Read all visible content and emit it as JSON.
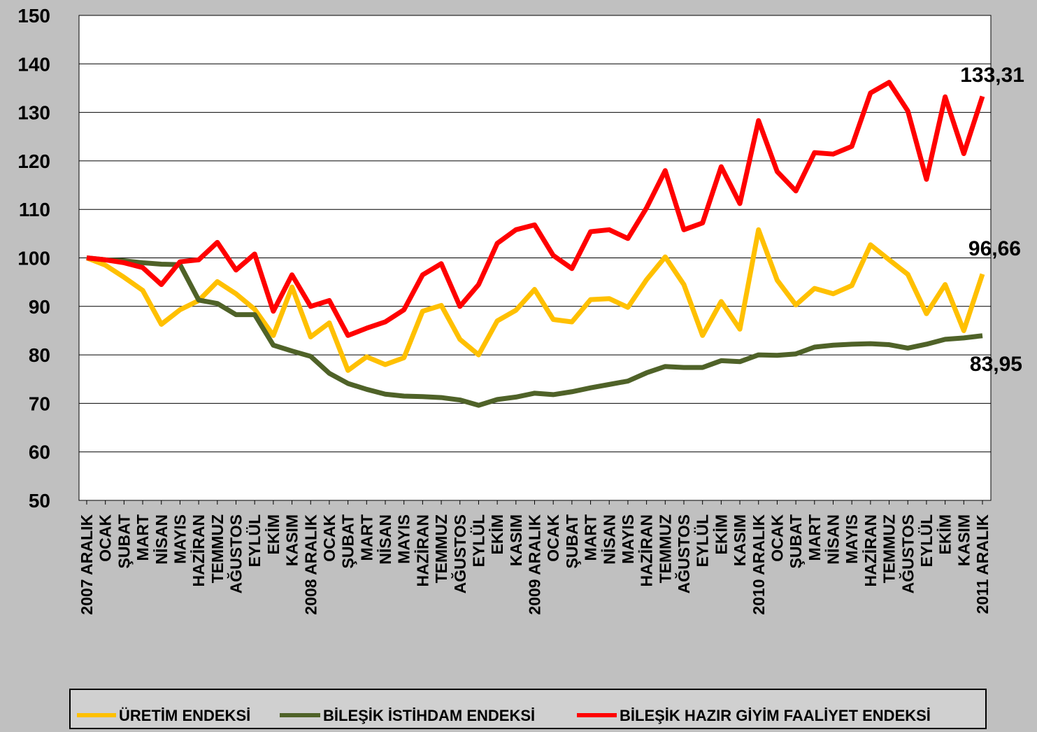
{
  "chart_data": {
    "type": "line",
    "categories": [
      "2007 ARALIK",
      "OCAK",
      "ŞUBAT",
      "MART",
      "NİSAN",
      "MAYIS",
      "HAZİRAN",
      "TEMMUZ",
      "AĞUSTOS",
      "EYLÜL",
      "EKİM",
      "KASIM",
      "2008 ARALIK",
      "OCAK",
      "ŞUBAT",
      "MART",
      "NİSAN",
      "MAYIS",
      "HAZİRAN",
      "TEMMUZ",
      "AĞUSTOS",
      "EYLÜL",
      "EKİM",
      "KASIM",
      "2009 ARALIK",
      "OCAK",
      "ŞUBAT",
      "MART",
      "NİSAN",
      "MAYIS",
      "HAZİRAN",
      "TEMMUZ",
      "AĞUSTOS",
      "EYLÜL",
      "EKİM",
      "KASIM",
      "2010 ARALIK",
      "OCAK",
      "ŞUBAT",
      "MART",
      "NİSAN",
      "MAYIS",
      "HAZİRAN",
      "TEMMUZ",
      "AĞUSTOS",
      "EYLÜL",
      "EKİM",
      "KASIM",
      "2011 ARALIK"
    ],
    "series": [
      {
        "name": "ÜRETİM ENDEKSİ",
        "color": "#ffc000",
        "values": [
          100,
          98.5,
          96,
          93.3,
          86.3,
          89.3,
          91.2,
          95.1,
          92.6,
          89.4,
          84,
          94,
          83.7,
          86.6,
          76.8,
          79.6,
          78,
          79.4,
          89,
          90.2,
          83.2,
          80,
          87,
          89.2,
          93.5,
          87.3,
          86.8,
          91.4,
          91.6,
          89.8,
          95.5,
          100.2,
          94.5,
          84,
          91,
          85.3,
          105.8,
          95.4,
          90.3,
          93.7,
          92.6,
          94.3,
          102.7,
          99.6,
          96.6,
          88.5,
          94.5,
          85,
          96.66
        ],
        "value_labels": [
          null,
          null,
          null,
          null,
          null,
          null,
          null,
          null,
          null,
          null,
          null,
          null,
          null,
          null,
          null,
          null,
          null,
          null,
          null,
          null,
          null,
          null,
          null,
          null,
          null,
          null,
          null,
          null,
          null,
          null,
          null,
          null,
          null,
          null,
          null,
          null,
          null,
          null,
          null,
          null,
          null,
          null,
          null,
          null,
          null,
          null,
          null,
          null,
          "96,66"
        ]
      },
      {
        "name": "BİLEŞİK İSTİHDAM ENDEKSİ",
        "color": "#4f6228",
        "values": [
          100,
          99.6,
          99.4,
          99,
          98.7,
          98.6,
          91.3,
          90.6,
          88.3,
          88.3,
          82,
          80.8,
          79.7,
          76.2,
          74.1,
          72.9,
          71.9,
          71.5,
          71.4,
          71.2,
          70.7,
          69.6,
          70.8,
          71.3,
          72.1,
          71.8,
          72.4,
          73.2,
          73.9,
          74.6,
          76.3,
          77.6,
          77.4,
          77.4,
          78.8,
          78.6,
          80,
          79.9,
          80.2,
          81.6,
          82,
          82.2,
          82.3,
          82.1,
          81.4,
          82.2,
          83.2,
          83.5,
          83.95
        ],
        "value_labels": [
          null,
          null,
          null,
          null,
          null,
          null,
          null,
          null,
          null,
          null,
          null,
          null,
          null,
          null,
          null,
          null,
          null,
          null,
          null,
          null,
          null,
          null,
          null,
          null,
          null,
          null,
          null,
          null,
          null,
          null,
          null,
          null,
          null,
          null,
          null,
          null,
          null,
          null,
          null,
          null,
          null,
          null,
          null,
          null,
          null,
          null,
          null,
          null,
          "83,95"
        ]
      },
      {
        "name": "BİLEŞİK HAZIR GİYİM FAALİYET ENDEKSİ",
        "color": "#ff0000",
        "values": [
          100,
          99.6,
          99,
          98,
          94.5,
          99.2,
          99.6,
          103.2,
          97.5,
          100.8,
          89,
          96.5,
          90,
          91.2,
          84,
          85.5,
          86.8,
          89.3,
          96.5,
          98.8,
          90,
          94.5,
          103,
          105.8,
          106.8,
          100.5,
          97.8,
          105.4,
          105.8,
          104,
          110.3,
          118,
          105.8,
          107.2,
          118.8,
          111.2,
          128.3,
          117.8,
          113.8,
          121.7,
          121.4,
          123,
          134,
          136.2,
          130.3,
          116.2,
          133.2,
          121.5,
          133.31
        ],
        "value_labels": [
          null,
          null,
          null,
          null,
          null,
          null,
          null,
          null,
          null,
          null,
          null,
          null,
          null,
          null,
          null,
          null,
          null,
          null,
          null,
          null,
          null,
          null,
          null,
          null,
          null,
          null,
          null,
          null,
          null,
          null,
          null,
          null,
          null,
          null,
          null,
          null,
          null,
          null,
          null,
          null,
          null,
          null,
          null,
          null,
          null,
          null,
          null,
          null,
          "133,31"
        ]
      }
    ],
    "ylim": [
      50,
      150
    ],
    "yticks": [
      50,
      60,
      70,
      80,
      90,
      100,
      110,
      120,
      130,
      140,
      150
    ],
    "grid": true,
    "legend": "bottom"
  }
}
